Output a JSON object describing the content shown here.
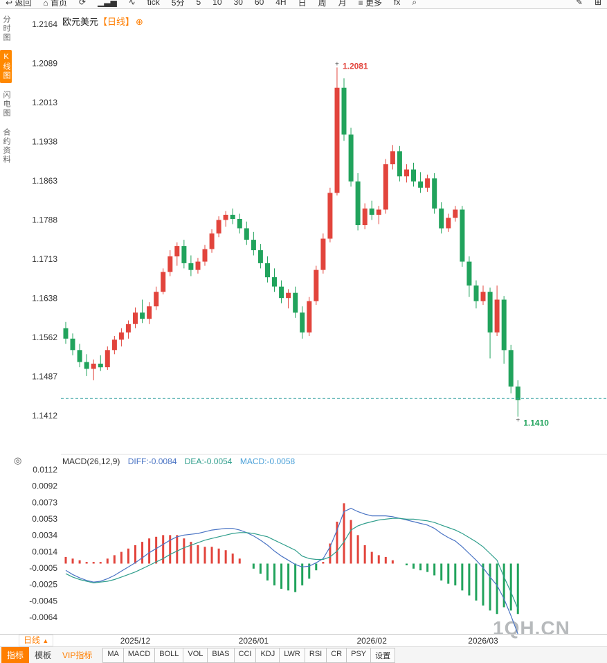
{
  "icons": {
    "back-arrow": "↩",
    "home": "⌂",
    "refresh": "⟳",
    "bar-chart": "▁▃▅",
    "wave": "∿",
    "menu": "≡",
    "search": "⌕",
    "edit": "✎",
    "grid": "⊞",
    "target": "◎",
    "add": "⊕",
    "up-arrow": "▲"
  },
  "toolbar": {
    "items": [
      {
        "id": "back",
        "label": "返回",
        "icon": "back-arrow"
      },
      {
        "id": "home",
        "label": "首页",
        "icon": "home"
      },
      {
        "id": "refresh",
        "label": "",
        "icon": "refresh"
      },
      {
        "id": "volume-chart",
        "label": "",
        "icon": "bar-chart"
      },
      {
        "id": "tick-chart",
        "label": "",
        "icon": "wave"
      },
      {
        "id": "period-tick",
        "label": "tick"
      },
      {
        "id": "period-5min",
        "label": "5分"
      },
      {
        "id": "period-5",
        "label": "5"
      },
      {
        "id": "period-10",
        "label": "10"
      },
      {
        "id": "period-30",
        "label": "30"
      },
      {
        "id": "period-60",
        "label": "60"
      },
      {
        "id": "period-4h",
        "label": "4H"
      },
      {
        "id": "period-day",
        "label": "日"
      },
      {
        "id": "period-week",
        "label": "周"
      },
      {
        "id": "period-month",
        "label": "月"
      },
      {
        "id": "more",
        "label": "更多",
        "icon": "menu"
      },
      {
        "id": "fx",
        "label": "fx"
      },
      {
        "id": "search",
        "label": "",
        "icon": "search"
      },
      {
        "id": "edit",
        "label": "",
        "icon": "edit"
      },
      {
        "id": "panels",
        "label": "",
        "icon": "grid"
      }
    ]
  },
  "sidebar": {
    "items": [
      {
        "id": "time-chart",
        "label": "分时图",
        "active": false
      },
      {
        "id": "kline-chart",
        "label": "K线图",
        "active": true
      },
      {
        "id": "lightning-chart",
        "label": "闪电图",
        "active": false
      },
      {
        "id": "contract-info",
        "label": "合约资料",
        "active": false
      }
    ]
  },
  "chart_header": {
    "symbol": "欧元美元",
    "period": "【日线】"
  },
  "macd_header": {
    "name": "MACD(26,12,9)",
    "diff": "DIFF:-0.0084",
    "dea": "DEA:-0.0054",
    "macd": "MACD:-0.0058"
  },
  "footer": {
    "period_selector": "日线",
    "tabs": [
      {
        "label": "指标",
        "active": true
      },
      {
        "label": "模板"
      },
      {
        "label": "VIP指标",
        "vip": true
      }
    ],
    "indicator_buttons": [
      "MA",
      "MACD",
      "BOLL",
      "VOL",
      "BIAS",
      "CCI",
      "KDJ",
      "LWR",
      "RSI",
      "CR",
      "PSY",
      "设置"
    ]
  },
  "watermark": "1QH.CN",
  "colors": {
    "accent_orange": "#ff7e00",
    "up_red": "#e2443c",
    "down_green": "#21a35c",
    "diff_blue": "#4a74c4",
    "dea_teal": "#2f9e8c",
    "macd_text_blue": "#4aa0d8",
    "ref_line": "#2e9e9e",
    "axis_text": "#333333",
    "watermark_gray": "#b7babc"
  },
  "chart_data": [
    {
      "type": "candlestick",
      "title": "欧元美元 日线 (EUR/USD daily)",
      "grid": false,
      "ylim": [
        1.1412,
        1.2164
      ],
      "y_ticks": [
        1.2164,
        1.2089,
        1.2013,
        1.1938,
        1.1863,
        1.1788,
        1.1713,
        1.1638,
        1.1562,
        1.1487,
        1.1412
      ],
      "x_ticks": [
        {
          "index": 10,
          "label": "2025/12"
        },
        {
          "index": 27,
          "label": "2026/01"
        },
        {
          "index": 44,
          "label": "2026/02"
        },
        {
          "index": 60,
          "label": "2026/03"
        }
      ],
      "reference_line": 1.1445,
      "high_marker": {
        "index": 39,
        "price": 1.2081,
        "label": "1.2081"
      },
      "low_marker": {
        "index": 65,
        "price": 1.141,
        "label": "1.1410"
      },
      "candles_ohlc": [
        [
          1.158,
          1.1592,
          1.155,
          1.156
        ],
        [
          1.156,
          1.157,
          1.1528,
          1.1538
        ],
        [
          1.1538,
          1.155,
          1.1505,
          1.1515
        ],
        [
          1.1515,
          1.153,
          1.1488,
          1.1502
        ],
        [
          1.1502,
          1.152,
          1.148,
          1.1512
        ],
        [
          1.1512,
          1.1528,
          1.1498,
          1.1505
        ],
        [
          1.1505,
          1.1545,
          1.15,
          1.1538
        ],
        [
          1.1538,
          1.1565,
          1.153,
          1.1558
        ],
        [
          1.1558,
          1.158,
          1.1545,
          1.1572
        ],
        [
          1.1572,
          1.1595,
          1.156,
          1.1588
        ],
        [
          1.1588,
          1.162,
          1.158,
          1.161
        ],
        [
          1.161,
          1.1635,
          1.159,
          1.1598
        ],
        [
          1.1598,
          1.163,
          1.1588,
          1.1622
        ],
        [
          1.1622,
          1.166,
          1.1615,
          1.165
        ],
        [
          1.165,
          1.1695,
          1.1645,
          1.1688
        ],
        [
          1.1688,
          1.173,
          1.168,
          1.1718
        ],
        [
          1.1718,
          1.1745,
          1.17,
          1.1738
        ],
        [
          1.1738,
          1.175,
          1.1695,
          1.1705
        ],
        [
          1.1705,
          1.172,
          1.168,
          1.1692
        ],
        [
          1.1692,
          1.1715,
          1.1685,
          1.1708
        ],
        [
          1.1708,
          1.174,
          1.17,
          1.1732
        ],
        [
          1.1732,
          1.177,
          1.1725,
          1.1762
        ],
        [
          1.1762,
          1.1795,
          1.1755,
          1.1788
        ],
        [
          1.1788,
          1.1805,
          1.1775,
          1.1798
        ],
        [
          1.1798,
          1.181,
          1.178,
          1.179
        ],
        [
          1.179,
          1.18,
          1.1762,
          1.1772
        ],
        [
          1.1772,
          1.1785,
          1.174,
          1.175
        ],
        [
          1.175,
          1.1765,
          1.172,
          1.173
        ],
        [
          1.173,
          1.1742,
          1.1695,
          1.1705
        ],
        [
          1.1705,
          1.1718,
          1.1668,
          1.1678
        ],
        [
          1.1678,
          1.1695,
          1.165,
          1.166
        ],
        [
          1.166,
          1.1672,
          1.1628,
          1.1638
        ],
        [
          1.1638,
          1.1655,
          1.1618,
          1.1648
        ],
        [
          1.1648,
          1.166,
          1.16,
          1.161
        ],
        [
          1.161,
          1.1622,
          1.156,
          1.1572
        ],
        [
          1.1572,
          1.164,
          1.1565,
          1.1632
        ],
        [
          1.1632,
          1.17,
          1.1625,
          1.1692
        ],
        [
          1.1692,
          1.1762,
          1.1685,
          1.1752
        ],
        [
          1.1752,
          1.185,
          1.1745,
          1.184
        ],
        [
          1.184,
          1.2081,
          1.1835,
          1.2042
        ],
        [
          1.2042,
          1.206,
          1.194,
          1.1952
        ],
        [
          1.1952,
          1.1965,
          1.1852,
          1.1862
        ],
        [
          1.1862,
          1.1878,
          1.1768,
          1.1778
        ],
        [
          1.1778,
          1.182,
          1.177,
          1.181
        ],
        [
          1.181,
          1.1825,
          1.1788,
          1.1798
        ],
        [
          1.1798,
          1.1815,
          1.178,
          1.1808
        ],
        [
          1.1808,
          1.1905,
          1.18,
          1.1895
        ],
        [
          1.1895,
          1.1932,
          1.1885,
          1.192
        ],
        [
          1.192,
          1.193,
          1.1862,
          1.1872
        ],
        [
          1.1872,
          1.1895,
          1.186,
          1.1885
        ],
        [
          1.1885,
          1.1898,
          1.1852,
          1.1862
        ],
        [
          1.1862,
          1.188,
          1.184,
          1.185
        ],
        [
          1.185,
          1.1875,
          1.1842,
          1.1868
        ],
        [
          1.1868,
          1.1878,
          1.18,
          1.181
        ],
        [
          1.181,
          1.1822,
          1.1762,
          1.1772
        ],
        [
          1.1772,
          1.18,
          1.1765,
          1.1792
        ],
        [
          1.1792,
          1.1815,
          1.1785,
          1.1808
        ],
        [
          1.1808,
          1.1815,
          1.1698,
          1.1708
        ],
        [
          1.1708,
          1.1718,
          1.164,
          1.1662
        ],
        [
          1.1662,
          1.1672,
          1.1618,
          1.1632
        ],
        [
          1.1632,
          1.1662,
          1.1625,
          1.165
        ],
        [
          1.165,
          1.1658,
          1.1522,
          1.1572
        ],
        [
          1.1572,
          1.1662,
          1.1565,
          1.1635
        ],
        [
          1.1635,
          1.1642,
          1.1512,
          1.1538
        ],
        [
          1.1538,
          1.1548,
          1.1455,
          1.1468
        ],
        [
          1.1468,
          1.148,
          1.141,
          1.1442
        ]
      ]
    },
    {
      "type": "macd",
      "name": "MACD(26,12,9)",
      "legend_position": "top-left",
      "y_ticks": [
        0.0112,
        0.0092,
        0.0073,
        0.0053,
        0.0034,
        0.0014,
        -0.0005,
        -0.0025,
        -0.0045,
        -0.0064
      ],
      "histogram_formula": "2*(diff-dea)",
      "latest": {
        "diff": -0.0084,
        "dea": -0.0054,
        "macd": -0.0058
      },
      "diff": [
        -0.0008,
        -0.0013,
        -0.0017,
        -0.002,
        -0.0022,
        -0.0021,
        -0.0018,
        -0.0014,
        -0.0009,
        -0.0004,
        0.0001,
        0.0007,
        0.0013,
        0.0018,
        0.0023,
        0.0028,
        0.0032,
        0.0034,
        0.0035,
        0.0036,
        0.0038,
        0.004,
        0.0041,
        0.0042,
        0.0042,
        0.004,
        0.0037,
        0.0033,
        0.0028,
        0.0022,
        0.0015,
        0.0009,
        0.0004,
        -0.0001,
        -0.0004,
        -0.0003,
        0.0001,
        0.0006,
        0.002,
        0.004,
        0.0062,
        0.0066,
        0.0062,
        0.0059,
        0.0057,
        0.0057,
        0.0057,
        0.0056,
        0.0054,
        0.0052,
        0.005,
        0.0048,
        0.0046,
        0.0042,
        0.0036,
        0.0031,
        0.0027,
        0.002,
        0.0012,
        0.0004,
        -0.0005,
        -0.0016,
        -0.0026,
        -0.0042,
        -0.0062,
        -0.0084
      ],
      "dea": [
        -0.0012,
        -0.0016,
        -0.0019,
        -0.0021,
        -0.0023,
        -0.0022,
        -0.0021,
        -0.0019,
        -0.0016,
        -0.0013,
        -0.001,
        -0.0006,
        -0.0002,
        0.0002,
        0.0006,
        0.0011,
        0.0015,
        0.0019,
        0.0022,
        0.0025,
        0.0028,
        0.003,
        0.0032,
        0.0034,
        0.0036,
        0.0037,
        0.0037,
        0.0036,
        0.0034,
        0.0032,
        0.0028,
        0.0024,
        0.002,
        0.0016,
        0.0009,
        0.0006,
        0.0005,
        0.0005,
        0.0008,
        0.0015,
        0.0026,
        0.004,
        0.0045,
        0.0048,
        0.005,
        0.0052,
        0.0053,
        0.0054,
        0.0054,
        0.0053,
        0.0053,
        0.0052,
        0.0051,
        0.0049,
        0.0046,
        0.0043,
        0.004,
        0.0036,
        0.0031,
        0.0026,
        0.002,
        0.0012,
        0.0004,
        -0.0016,
        -0.0034,
        -0.0054
      ]
    }
  ]
}
